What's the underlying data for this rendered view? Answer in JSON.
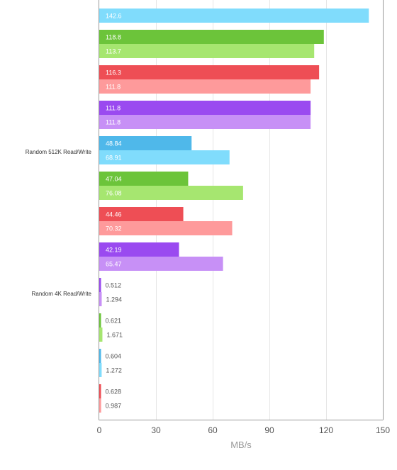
{
  "chart_data": {
    "type": "bar",
    "orientation": "horizontal",
    "xlabel": "MB/s",
    "xlim": [
      0,
      150
    ],
    "xticks": [
      "0",
      "30",
      "60",
      "90",
      "120",
      "150"
    ],
    "grid": true,
    "colors": {
      "blue": [
        "#4fb8ea",
        "#80dcfc"
      ],
      "green": [
        "#6cc43a",
        "#a6e670"
      ],
      "red": [
        "#ee4e55",
        "#fe9a9b"
      ],
      "purple": [
        "#9a4af0",
        "#c790f6"
      ]
    },
    "groups": [
      {
        "label": "",
        "pairs": [
          {
            "color": "blue",
            "values": [
              null,
              142.6
            ],
            "labels": [
              "",
              "142.6"
            ]
          },
          {
            "color": "green",
            "values": [
              118.8,
              113.7
            ],
            "labels": [
              "118.8",
              "113.7"
            ]
          },
          {
            "color": "red",
            "values": [
              116.3,
              111.8
            ],
            "labels": [
              "116.3",
              "111.8"
            ]
          },
          {
            "color": "purple",
            "values": [
              111.8,
              111.8
            ],
            "labels": [
              "111.8",
              "111.8"
            ]
          }
        ]
      },
      {
        "label": "Random 512K Read/Write",
        "pairs": [
          {
            "color": "blue",
            "values": [
              48.84,
              68.91
            ],
            "labels": [
              "48.84",
              "68.91"
            ]
          },
          {
            "color": "green",
            "values": [
              47.04,
              76.08
            ],
            "labels": [
              "47.04",
              "76.08"
            ]
          },
          {
            "color": "red",
            "values": [
              44.46,
              70.32
            ],
            "labels": [
              "44.46",
              "70.32"
            ]
          },
          {
            "color": "purple",
            "values": [
              42.19,
              65.47
            ],
            "labels": [
              "42.19",
              "65.47"
            ]
          }
        ]
      },
      {
        "label": "Random 4K Read/Write",
        "pairs": [
          {
            "color": "purple",
            "values": [
              0.512,
              1.294
            ],
            "labels": [
              "0.512",
              "1.294"
            ]
          },
          {
            "color": "green",
            "values": [
              0.621,
              1.671
            ],
            "labels": [
              "0.621",
              "1.671"
            ]
          },
          {
            "color": "blue",
            "values": [
              0.604,
              1.272
            ],
            "labels": [
              "0.604",
              "1.272"
            ]
          },
          {
            "color": "red",
            "values": [
              0.628,
              0.987
            ],
            "labels": [
              "0.628",
              "0.987"
            ]
          }
        ]
      }
    ]
  }
}
